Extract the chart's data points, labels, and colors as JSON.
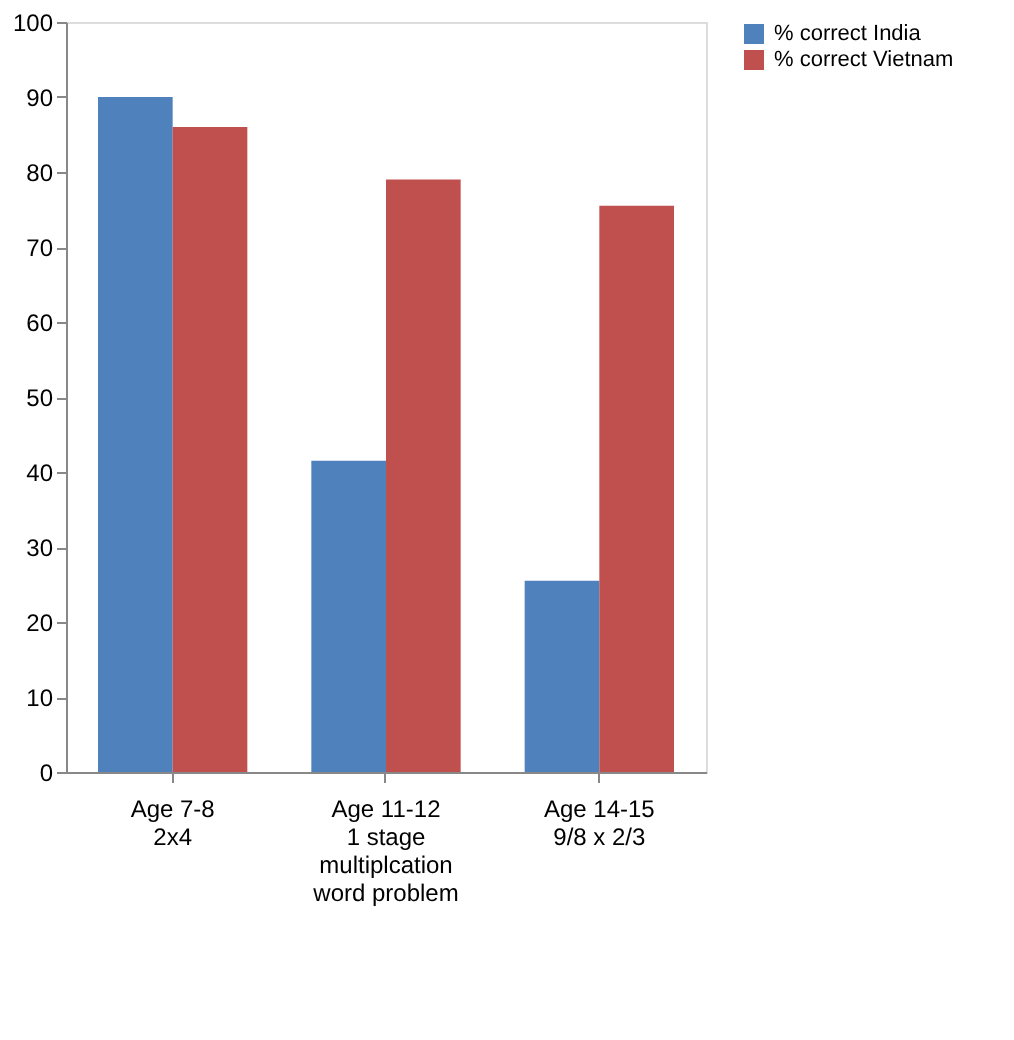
{
  "chart_data": {
    "type": "bar",
    "categories": [
      "Age 7-8\n2x4",
      "Age 11-12\n1 stage\nmultiplcation\nword problem",
      "Age 14-15\n9/8 x 2/3"
    ],
    "series": [
      {
        "name": "% correct India",
        "color": "#4f81bd",
        "values": [
          90,
          41.5,
          25.5
        ]
      },
      {
        "name": "% correct Vietnam",
        "color": "#c0504d",
        "values": [
          86,
          79,
          75.5
        ]
      }
    ],
    "ylim": [
      0,
      100
    ],
    "yticks": [
      0,
      10,
      20,
      30,
      40,
      50,
      60,
      70,
      80,
      90,
      100
    ],
    "grid": false,
    "legend": "right"
  }
}
